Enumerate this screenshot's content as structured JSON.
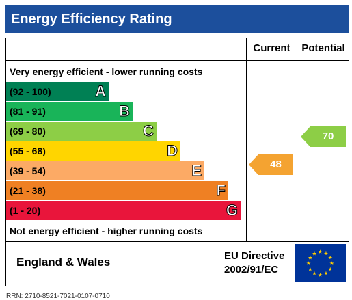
{
  "title": "Energy Efficiency Rating",
  "headers": {
    "current": "Current",
    "potential": "Potential"
  },
  "top_caption": "Very energy efficient - lower running costs",
  "bottom_caption": "Not energy efficient - higher running costs",
  "chart_data": {
    "type": "bar",
    "bands": [
      {
        "range": "(92 - 100)",
        "letter": "A",
        "color": "#008054"
      },
      {
        "range": "(81 - 91)",
        "letter": "B",
        "color": "#19b459"
      },
      {
        "range": "(69 - 80)",
        "letter": "C",
        "color": "#8dce46"
      },
      {
        "range": "(55 - 68)",
        "letter": "D",
        "color": "#ffd500"
      },
      {
        "range": "(39 - 54)",
        "letter": "E",
        "color": "#fcaa65"
      },
      {
        "range": "(21 - 38)",
        "letter": "F",
        "color": "#ef8023"
      },
      {
        "range": "(1 - 20)",
        "letter": "G",
        "color": "#e9153b"
      }
    ],
    "current": {
      "value": "48",
      "band": "E",
      "color": "#f4a331"
    },
    "potential": {
      "value": "70",
      "band": "C",
      "color": "#8dce46"
    }
  },
  "footer": {
    "region": "England & Wales",
    "directive_line1": "EU Directive",
    "directive_line2": "2002/91/EC",
    "flag_icon": "eu-flag-icon"
  },
  "rrn": "RRN: 2710-8521-7021-0107-0710"
}
